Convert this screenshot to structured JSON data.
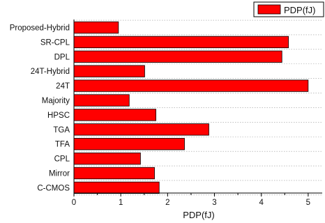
{
  "chart_data": {
    "type": "bar",
    "orientation": "horizontal",
    "categories": [
      "Proposed-Hybrid",
      "SR-CPL",
      "DPL",
      "24T-Hybrid",
      "24T",
      "Majority",
      "HPSC",
      "TGA",
      "TFA",
      "CPL",
      "Mirror",
      "C-CMOS"
    ],
    "series": [
      {
        "name": "PDP(fJ)",
        "color": "#ff0000",
        "values": [
          0.95,
          4.58,
          4.44,
          1.51,
          5.0,
          1.18,
          1.75,
          2.88,
          2.36,
          1.42,
          1.72,
          1.82
        ]
      }
    ],
    "xlabel": "PDP(fJ)",
    "ylabel": "",
    "title": "",
    "xlim": [
      0,
      5.3
    ],
    "xticks": [
      "0",
      "1",
      "2",
      "3",
      "4",
      "5"
    ],
    "grid": "dotted horizontal",
    "legend_position": "top-right"
  }
}
